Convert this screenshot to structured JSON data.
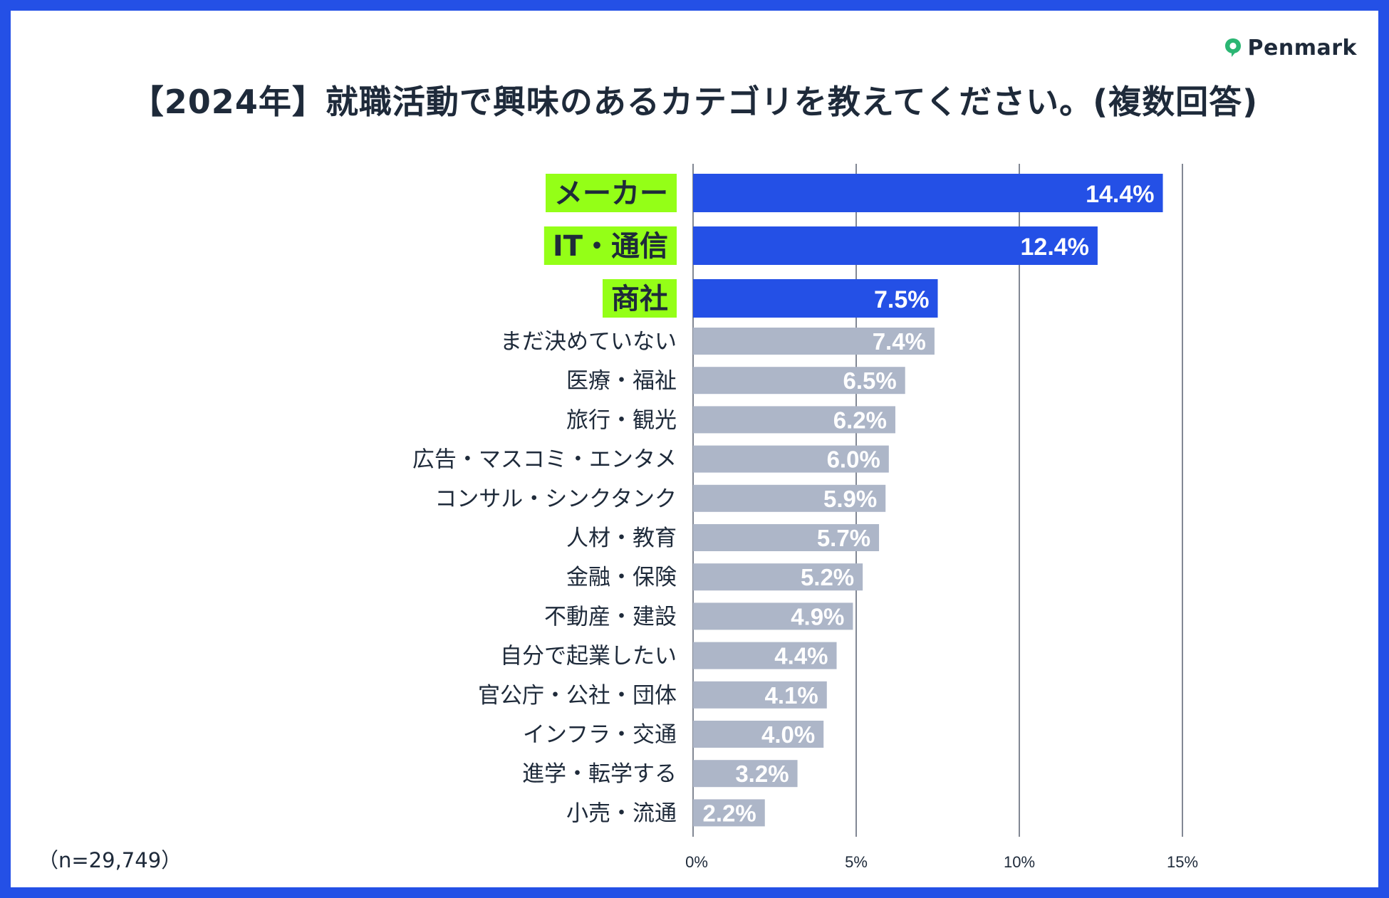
{
  "brand": {
    "name": "Penmark",
    "accent": "#2bb673"
  },
  "title": "【2024年】就職活動で興味のあるカテゴリを教えてください。(複数回答)",
  "sample_note": "（n=29,749）",
  "colors": {
    "border": "#2450e6",
    "highlight_bar": "#2450e6",
    "normal_bar": "#adb6c8",
    "highlight_label_bg": "#94ff17",
    "grid": "#4d5566",
    "text": "#1e2a3a"
  },
  "chart_data": {
    "type": "bar",
    "orientation": "horizontal",
    "title": "【2024年】就職活動で興味のあるカテゴリを教えてください。(複数回答)",
    "xlabel": "",
    "ylabel": "",
    "xlim": [
      0,
      15
    ],
    "xticks": [
      {
        "value": 0,
        "label": "0%"
      },
      {
        "value": 5,
        "label": "5%"
      },
      {
        "value": 10,
        "label": "10%"
      },
      {
        "value": 15,
        "label": "15%"
      }
    ],
    "grid": true,
    "categories": [
      "メーカー",
      "IT・通信",
      "商社",
      "まだ決めていない",
      "医療・福祉",
      "旅行・観光",
      "広告・マスコミ・エンタメ",
      "コンサル・シンクタンク",
      "人材・教育",
      "金融・保険",
      "不動産・建設",
      "自分で起業したい",
      "官公庁・公社・団体",
      "インフラ・交通",
      "進学・転学する",
      "小売・流通"
    ],
    "values": [
      14.4,
      12.4,
      7.5,
      7.4,
      6.5,
      6.2,
      6.0,
      5.9,
      5.7,
      5.2,
      4.9,
      4.4,
      4.1,
      4.0,
      3.2,
      2.2
    ],
    "value_labels": [
      "14.4%",
      "12.4%",
      "7.5%",
      "7.4%",
      "6.5%",
      "6.2%",
      "6.0%",
      "5.9%",
      "5.7%",
      "5.2%",
      "4.9%",
      "4.4%",
      "4.1%",
      "4.0%",
      "3.2%",
      "2.2%"
    ],
    "highlighted": [
      true,
      true,
      true,
      false,
      false,
      false,
      false,
      false,
      false,
      false,
      false,
      false,
      false,
      false,
      false,
      false
    ]
  }
}
